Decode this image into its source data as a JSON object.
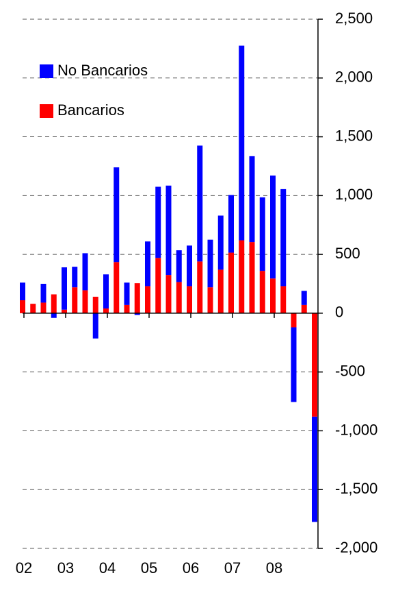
{
  "chart_data": {
    "type": "stacked_bar",
    "categories": [
      "02",
      null,
      null,
      null,
      "03",
      null,
      null,
      null,
      "04",
      null,
      null,
      null,
      "05",
      null,
      null,
      null,
      "06",
      null,
      null,
      null,
      "07",
      null,
      null,
      null,
      "08",
      null,
      null,
      null,
      null
    ],
    "series": [
      {
        "name": "Bancarios",
        "color": "#ff0000",
        "values": [
          110,
          80,
          90,
          160,
          30,
          220,
          195,
          140,
          40,
          435,
          70,
          255,
          230,
          470,
          325,
          265,
          230,
          440,
          220,
          370,
          515,
          620,
          605,
          360,
          295,
          230,
          -120,
          70,
          -880
        ]
      },
      {
        "name": "No Bancarios",
        "color": "#0000ff",
        "values": [
          150,
          0,
          160,
          -40,
          360,
          175,
          315,
          -215,
          290,
          805,
          190,
          -15,
          380,
          605,
          760,
          270,
          345,
          985,
          405,
          460,
          490,
          1655,
          730,
          625,
          875,
          825,
          -635,
          120,
          -895
        ]
      }
    ],
    "ylim": [
      -2000,
      2500
    ],
    "yticks": [
      {
        "value": -2000,
        "label": "-2,000"
      },
      {
        "value": -1500,
        "label": "-1,500"
      },
      {
        "value": -1000,
        "label": "-1,000"
      },
      -500,
      0,
      500,
      {
        "value": 1000,
        "label": "1,000"
      },
      {
        "value": 1500,
        "label": "1,500"
      },
      {
        "value": 2000,
        "label": "2,000"
      },
      {
        "value": 2500,
        "label": "2,500"
      }
    ],
    "grid": true,
    "legend": "upper left"
  }
}
